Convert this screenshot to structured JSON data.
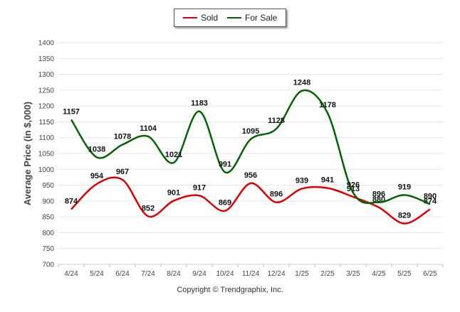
{
  "chart_data": {
    "type": "line",
    "ylabel": "Average Price (in $,000)",
    "xlabel": "",
    "ylim": [
      700,
      1400
    ],
    "yticks": [
      700,
      750,
      800,
      850,
      900,
      950,
      1000,
      1050,
      1100,
      1150,
      1200,
      1250,
      1300,
      1350,
      1400
    ],
    "categories": [
      "4/24",
      "5/24",
      "6/24",
      "7/24",
      "8/24",
      "9/24",
      "10/24",
      "11/24",
      "12/24",
      "1/25",
      "2/25",
      "3/25",
      "4/25",
      "5/25",
      "6/25"
    ],
    "grid": true,
    "legend_position": "top-center",
    "series": [
      {
        "name": "Sold",
        "color": "#e00000",
        "values": [
          874,
          954,
          967,
          852,
          901,
          917,
          869,
          956,
          896,
          939,
          941,
          913,
          880,
          829,
          874
        ]
      },
      {
        "name": "For Sale",
        "color": "#006400",
        "values": [
          1157,
          1038,
          1078,
          1104,
          1021,
          1183,
          991,
          1095,
          1128,
          1248,
          1178,
          926,
          896,
          919,
          890
        ]
      }
    ]
  },
  "footer": {
    "copyright": "Copyright © Trendgraphix, Inc."
  }
}
